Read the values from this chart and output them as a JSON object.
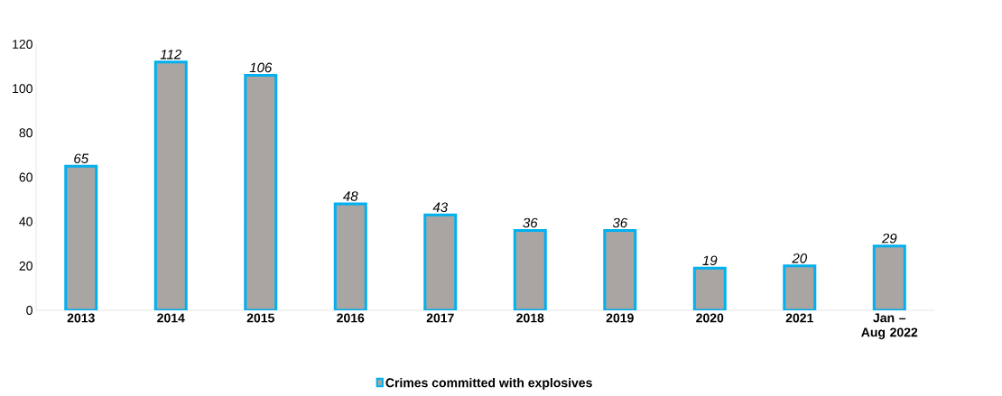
{
  "chart_data": {
    "type": "bar",
    "categories": [
      "2013",
      "2014",
      "2015",
      "2016",
      "2017",
      "2018",
      "2019",
      "2020",
      "2021",
      "Jan – Aug 2022"
    ],
    "series": [
      {
        "name": "Crimes committed with explosives",
        "color": "#a9a5a2",
        "values": [
          65,
          112,
          106,
          48,
          43,
          36,
          36,
          19,
          20,
          29
        ]
      }
    ],
    "ylim": [
      0,
      120
    ],
    "yticks": [
      0,
      20,
      40,
      60,
      80,
      100,
      120
    ],
    "data_labels": true,
    "legend": "bottom"
  }
}
